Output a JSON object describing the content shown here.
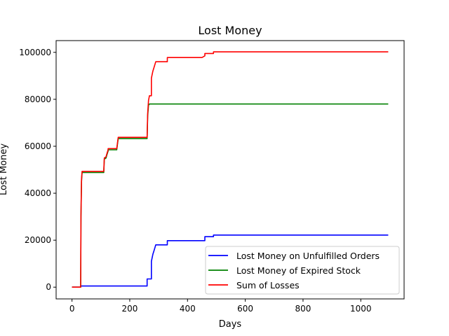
{
  "chart_data": {
    "type": "line",
    "title": "Lost Money",
    "xlabel": "Days",
    "ylabel": "Lost Money",
    "xlim": [
      -55,
      1150
    ],
    "ylim": [
      -5000,
      105000
    ],
    "xticks": [
      0,
      200,
      400,
      600,
      800,
      1000
    ],
    "yticks": [
      0,
      20000,
      40000,
      60000,
      80000,
      100000
    ],
    "xtick_labels": [
      "0",
      "200",
      "400",
      "600",
      "800",
      "1000"
    ],
    "ytick_labels": [
      "0",
      "20000",
      "40000",
      "60000",
      "80000",
      "100000"
    ],
    "grid": false,
    "legend_position": "lower-right",
    "series": [
      {
        "name": "Lost Money on Unfulfilled Orders",
        "color": "#0000ff",
        "x": [
          0,
          30,
          30,
          260,
          260,
          275,
          275,
          280,
          285,
          290,
          290,
          330,
          330,
          460,
          460,
          490,
          490,
          1095
        ],
        "y": [
          0,
          0,
          500,
          500,
          3500,
          3500,
          11000,
          14000,
          16000,
          18000,
          18000,
          18000,
          19800,
          19800,
          21500,
          21500,
          22200,
          22200
        ]
      },
      {
        "name": "Lost Money of Expired Stock",
        "color": "#008000",
        "x": [
          0,
          30,
          31,
          33,
          35,
          110,
          112,
          118,
          120,
          125,
          125,
          155,
          158,
          160,
          260,
          262,
          265,
          268,
          1095
        ],
        "y": [
          0,
          0,
          30000,
          45000,
          48800,
          48800,
          54500,
          55000,
          56000,
          58000,
          58500,
          58500,
          61500,
          63300,
          63300,
          73000,
          77500,
          78000,
          78000
        ]
      },
      {
        "name": "Sum of Losses",
        "color": "#ff0000",
        "x": [
          0,
          30,
          31,
          33,
          35,
          110,
          112,
          118,
          120,
          125,
          125,
          155,
          158,
          160,
          260,
          262,
          265,
          268,
          275,
          275,
          280,
          285,
          290,
          290,
          330,
          330,
          450,
          460,
          460,
          490,
          490,
          1095
        ],
        "y": [
          0,
          0,
          30000,
          46000,
          49300,
          49300,
          55000,
          55500,
          56500,
          58500,
          59000,
          59000,
          62000,
          63800,
          63800,
          74000,
          79500,
          81500,
          81500,
          89000,
          92000,
          94000,
          96000,
          96000,
          96000,
          97800,
          97800,
          98500,
          99500,
          99500,
          100200,
          100200
        ]
      }
    ]
  }
}
